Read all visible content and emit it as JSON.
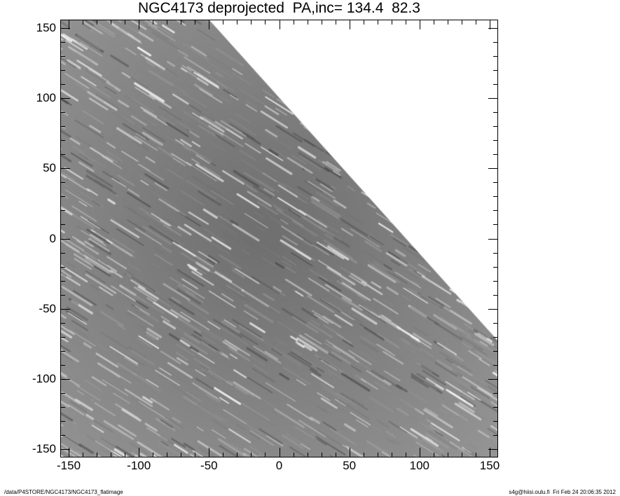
{
  "chart_data": {
    "type": "heatmap",
    "title": "NGC4173 deprojected  PA,inc= 134.4  82.3",
    "xlabel": "",
    "ylabel": "",
    "xlim": [
      -156,
      156
    ],
    "ylim": [
      -156,
      156
    ],
    "xticks": [
      -150,
      -100,
      -50,
      0,
      50,
      100,
      150
    ],
    "yticks": [
      -150,
      -100,
      -50,
      0,
      50,
      100,
      150
    ],
    "minor_tick_step": 10,
    "colormap": "grayscale",
    "blank_region": "upper-right, beyond diagonal edge from (-50,154) to (156,-73)",
    "blank_color": "#ffffff",
    "grid": false,
    "legend": "none"
  },
  "footer": {
    "left": "/data/P4STORE/NGC4173/NGC4173_flatimage",
    "right": "s4g@hiisi.oulu.fi  Fri Feb 24 20:06:35 2012"
  }
}
